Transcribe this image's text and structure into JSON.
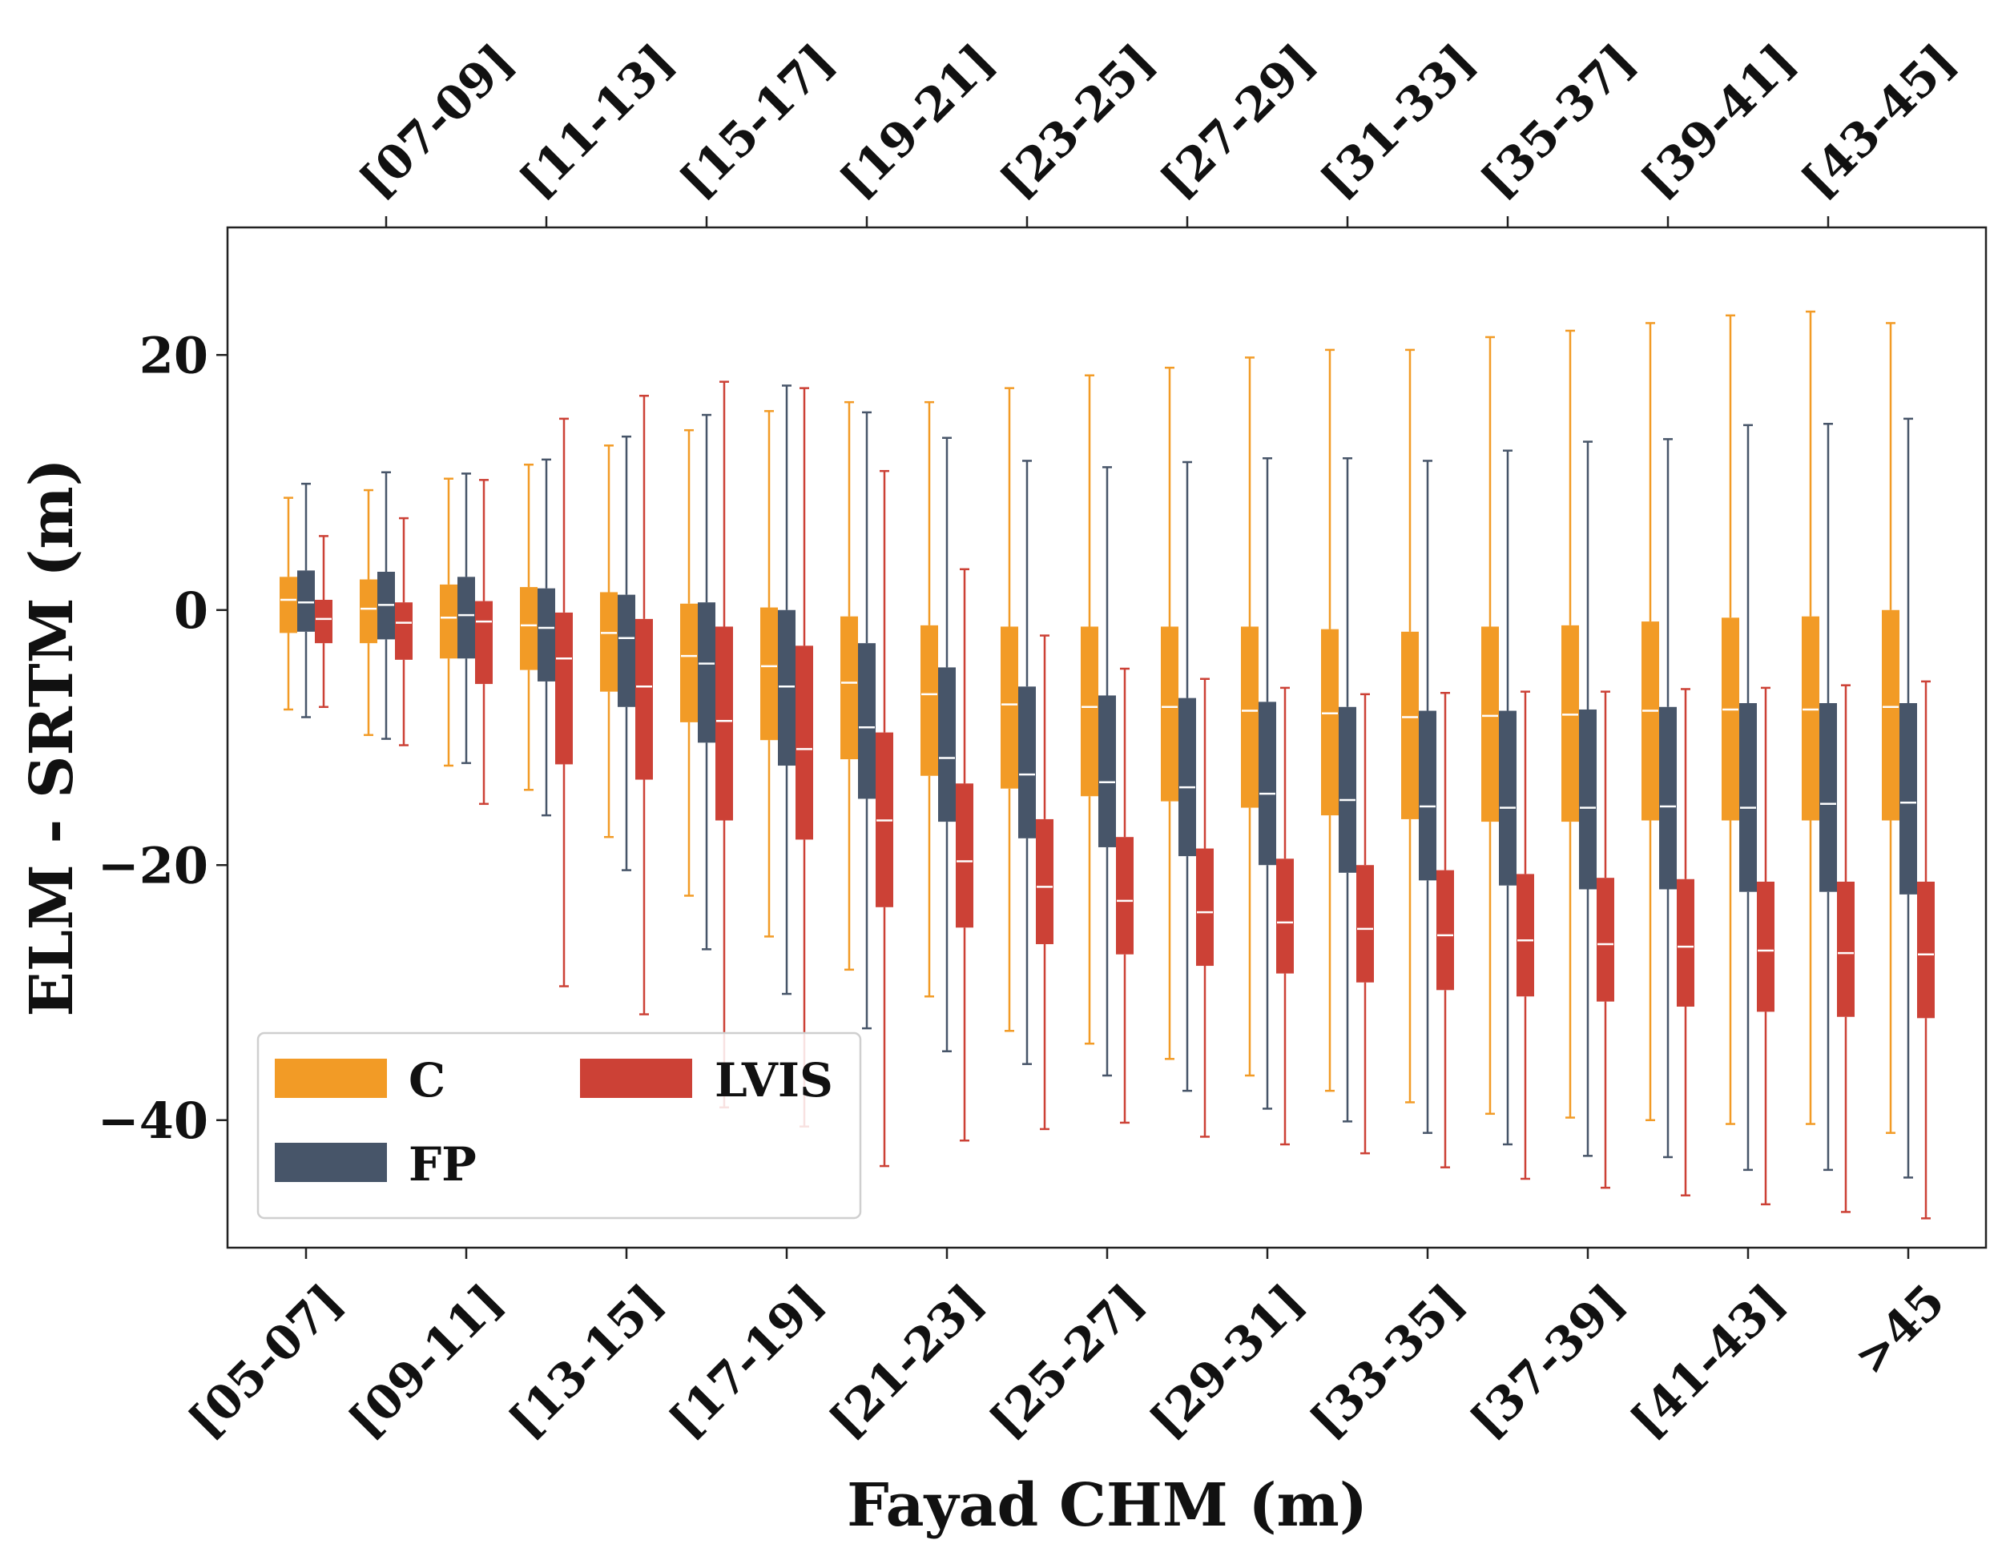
{
  "chart_data": {
    "type": "box",
    "title": "",
    "xlabel": "Fayad CHM (m)",
    "ylabel": "ELM - SRTM (m)",
    "ylim": [
      -50,
      30
    ],
    "yticks": [
      20,
      0,
      -20,
      -40
    ],
    "ytick_labels": [
      "20",
      "0",
      "−20",
      "−40"
    ],
    "categories": [
      "[05-07]",
      "[07-09]",
      "[09-11]",
      "[11-13]",
      "[13-15]",
      "[15-17]",
      "[17-19]",
      "[19-21]",
      "[21-23]",
      "[23-25]",
      "[25-27]",
      "[27-29]",
      "[29-31]",
      "[31-33]",
      "[33-35]",
      "[35-37]",
      "[37-39]",
      "[39-41]",
      "[41-43]",
      "[43-45]",
      ">45"
    ],
    "bottom_tick_labels": [
      "[05-07]",
      "[09-11]",
      "[13-15]",
      "[17-19]",
      "[21-23]",
      "[25-27]",
      "[29-31]",
      "[33-35]",
      "[37-39]",
      "[41-43]",
      ">45"
    ],
    "top_tick_labels": [
      "[07-09]",
      "[11-13]",
      "[15-17]",
      "[19-21]",
      "[23-25]",
      "[27-29]",
      "[31-33]",
      "[35-37]",
      "[39-41]",
      "[43-45]"
    ],
    "legend": {
      "location": "lower-left",
      "entries": [
        "C",
        "FP",
        "LVIS"
      ]
    },
    "series": [
      {
        "name": "C",
        "color": "#f29b26",
        "boxes": [
          {
            "whislo": -7.8,
            "q1": -1.8,
            "med": 0.8,
            "q3": 2.6,
            "whishi": 8.8
          },
          {
            "whislo": -9.8,
            "q1": -2.6,
            "med": 0.1,
            "q3": 2.4,
            "whishi": 9.4
          },
          {
            "whislo": -12.2,
            "q1": -3.8,
            "med": -0.6,
            "q3": 2.0,
            "whishi": 10.3
          },
          {
            "whislo": -14.1,
            "q1": -4.7,
            "med": -1.2,
            "q3": 1.8,
            "whishi": 11.4
          },
          {
            "whislo": -17.8,
            "q1": -6.4,
            "med": -1.8,
            "q3": 1.4,
            "whishi": 12.9
          },
          {
            "whislo": -22.4,
            "q1": -8.8,
            "med": -3.6,
            "q3": 0.5,
            "whishi": 14.1
          },
          {
            "whislo": -25.6,
            "q1": -10.2,
            "med": -4.4,
            "q3": 0.2,
            "whishi": 15.6
          },
          {
            "whislo": -28.2,
            "q1": -11.7,
            "med": -5.7,
            "q3": -0.5,
            "whishi": 16.3
          },
          {
            "whislo": -30.3,
            "q1": -13.0,
            "med": -6.6,
            "q3": -1.2,
            "whishi": 16.3
          },
          {
            "whislo": -33.0,
            "q1": -14.0,
            "med": -7.4,
            "q3": -1.3,
            "whishi": 17.4
          },
          {
            "whislo": -34.0,
            "q1": -14.6,
            "med": -7.6,
            "q3": -1.3,
            "whishi": 18.4
          },
          {
            "whislo": -35.2,
            "q1": -15.0,
            "med": -7.6,
            "q3": -1.3,
            "whishi": 19.0
          },
          {
            "whislo": -36.5,
            "q1": -15.5,
            "med": -7.9,
            "q3": -1.3,
            "whishi": 19.8
          },
          {
            "whislo": -37.7,
            "q1": -16.1,
            "med": -8.1,
            "q3": -1.5,
            "whishi": 20.4
          },
          {
            "whislo": -38.6,
            "q1": -16.4,
            "med": -8.4,
            "q3": -1.7,
            "whishi": 20.4
          },
          {
            "whislo": -39.5,
            "q1": -16.6,
            "med": -8.3,
            "q3": -1.3,
            "whishi": 21.4
          },
          {
            "whislo": -39.8,
            "q1": -16.6,
            "med": -8.2,
            "q3": -1.2,
            "whishi": 21.9
          },
          {
            "whislo": -40.0,
            "q1": -16.5,
            "med": -7.9,
            "q3": -0.9,
            "whishi": 22.5
          },
          {
            "whislo": -40.3,
            "q1": -16.5,
            "med": -7.8,
            "q3": -0.6,
            "whishi": 23.1
          },
          {
            "whislo": -40.3,
            "q1": -16.5,
            "med": -7.8,
            "q3": -0.5,
            "whishi": 23.4
          },
          {
            "whislo": -41.0,
            "q1": -16.5,
            "med": -7.6,
            "q3": 0.0,
            "whishi": 22.5
          }
        ]
      },
      {
        "name": "FP",
        "color": "#475569",
        "boxes": [
          {
            "whislo": -8.4,
            "q1": -1.7,
            "med": 0.6,
            "q3": 3.1,
            "whishi": 9.9
          },
          {
            "whislo": -10.1,
            "q1": -2.3,
            "med": 0.4,
            "q3": 3.0,
            "whishi": 10.8
          },
          {
            "whislo": -12.0,
            "q1": -3.8,
            "med": -0.4,
            "q3": 2.6,
            "whishi": 10.7
          },
          {
            "whislo": -16.1,
            "q1": -5.6,
            "med": -1.4,
            "q3": 1.7,
            "whishi": 11.8
          },
          {
            "whislo": -20.4,
            "q1": -7.6,
            "med": -2.2,
            "q3": 1.2,
            "whishi": 13.6
          },
          {
            "whislo": -26.6,
            "q1": -10.4,
            "med": -4.2,
            "q3": 0.6,
            "whishi": 15.3
          },
          {
            "whislo": -30.1,
            "q1": -12.2,
            "med": -6.0,
            "q3": 0.0,
            "whishi": 17.6
          },
          {
            "whislo": -32.8,
            "q1": -14.8,
            "med": -9.2,
            "q3": -2.6,
            "whishi": 15.5
          },
          {
            "whislo": -34.6,
            "q1": -16.6,
            "med": -11.6,
            "q3": -4.5,
            "whishi": 13.5
          },
          {
            "whislo": -35.6,
            "q1": -17.9,
            "med": -12.9,
            "q3": -6.0,
            "whishi": 11.7
          },
          {
            "whislo": -36.5,
            "q1": -18.6,
            "med": -13.5,
            "q3": -6.7,
            "whishi": 11.2
          },
          {
            "whislo": -37.7,
            "q1": -19.3,
            "med": -13.9,
            "q3": -6.9,
            "whishi": 11.6
          },
          {
            "whislo": -39.1,
            "q1": -20.0,
            "med": -14.4,
            "q3": -7.2,
            "whishi": 11.9
          },
          {
            "whislo": -40.1,
            "q1": -20.6,
            "med": -14.9,
            "q3": -7.6,
            "whishi": 11.9
          },
          {
            "whislo": -41.0,
            "q1": -21.2,
            "med": -15.4,
            "q3": -7.9,
            "whishi": 11.7
          },
          {
            "whislo": -41.9,
            "q1": -21.6,
            "med": -15.5,
            "q3": -7.9,
            "whishi": 12.5
          },
          {
            "whislo": -42.8,
            "q1": -21.9,
            "med": -15.5,
            "q3": -7.8,
            "whishi": 13.2
          },
          {
            "whislo": -42.9,
            "q1": -21.9,
            "med": -15.4,
            "q3": -7.6,
            "whishi": 13.4
          },
          {
            "whislo": -43.9,
            "q1": -22.1,
            "med": -15.5,
            "q3": -7.3,
            "whishi": 14.5
          },
          {
            "whislo": -43.9,
            "q1": -22.1,
            "med": -15.2,
            "q3": -7.3,
            "whishi": 14.6
          },
          {
            "whislo": -44.5,
            "q1": -22.3,
            "med": -15.1,
            "q3": -7.3,
            "whishi": 15.0
          }
        ]
      },
      {
        "name": "LVIS",
        "color": "#cc4136",
        "boxes": [
          {
            "whislo": -7.6,
            "q1": -2.6,
            "med": -0.7,
            "q3": 0.8,
            "whishi": 5.8
          },
          {
            "whislo": -10.6,
            "q1": -3.9,
            "med": -1.0,
            "q3": 0.6,
            "whishi": 7.2
          },
          {
            "whislo": -15.2,
            "q1": -5.8,
            "med": -0.9,
            "q3": 0.7,
            "whishi": 10.2
          },
          {
            "whislo": -29.5,
            "q1": -12.1,
            "med": -3.8,
            "q3": -0.2,
            "whishi": 15.0
          },
          {
            "whislo": -31.7,
            "q1": -13.3,
            "med": -6.0,
            "q3": -0.7,
            "whishi": 16.8
          },
          {
            "whislo": -39.0,
            "q1": -16.5,
            "med": -8.7,
            "q3": -1.3,
            "whishi": 17.9
          },
          {
            "whislo": -40.5,
            "q1": -18.0,
            "med": -10.9,
            "q3": -2.8,
            "whishi": 17.4
          },
          {
            "whislo": -43.6,
            "q1": -23.3,
            "med": -16.5,
            "q3": -9.6,
            "whishi": 10.9
          },
          {
            "whislo": -41.6,
            "q1": -24.9,
            "med": -19.7,
            "q3": -13.6,
            "whishi": 3.2
          },
          {
            "whislo": -40.7,
            "q1": -26.2,
            "med": -21.7,
            "q3": -16.4,
            "whishi": -2.0
          },
          {
            "whislo": -40.2,
            "q1": -27.0,
            "med": -22.8,
            "q3": -17.8,
            "whishi": -4.6
          },
          {
            "whislo": -41.3,
            "q1": -27.9,
            "med": -23.7,
            "q3": -18.7,
            "whishi": -5.4
          },
          {
            "whislo": -41.9,
            "q1": -28.5,
            "med": -24.5,
            "q3": -19.5,
            "whishi": -6.1
          },
          {
            "whislo": -42.6,
            "q1": -29.2,
            "med": -25.0,
            "q3": -20.0,
            "whishi": -6.6
          },
          {
            "whislo": -43.7,
            "q1": -29.8,
            "med": -25.5,
            "q3": -20.4,
            "whishi": -6.5
          },
          {
            "whislo": -44.6,
            "q1": -30.3,
            "med": -25.9,
            "q3": -20.7,
            "whishi": -6.4
          },
          {
            "whislo": -45.3,
            "q1": -30.7,
            "med": -26.2,
            "q3": -21.0,
            "whishi": -6.4
          },
          {
            "whislo": -45.9,
            "q1": -31.1,
            "med": -26.4,
            "q3": -21.1,
            "whishi": -6.2
          },
          {
            "whislo": -46.6,
            "q1": -31.5,
            "med": -26.7,
            "q3": -21.3,
            "whishi": -6.1
          },
          {
            "whislo": -47.2,
            "q1": -31.9,
            "med": -26.9,
            "q3": -21.3,
            "whishi": -5.9
          },
          {
            "whislo": -47.7,
            "q1": -32.0,
            "med": -27.0,
            "q3": -21.3,
            "whishi": -5.6
          }
        ]
      }
    ]
  }
}
